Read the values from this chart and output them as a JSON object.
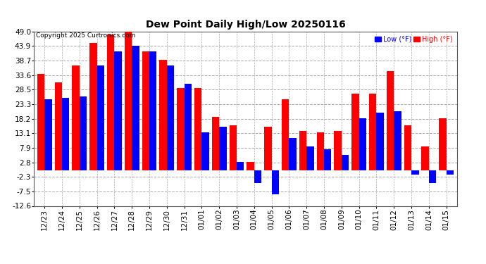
{
  "title": "Dew Point Daily High/Low 20250116",
  "copyright": "Copyright 2025 Curtronics.com",
  "legend_low": "Low (°F)",
  "legend_high": "High (°F)",
  "low_color": "#0000ff",
  "high_color": "#ff0000",
  "background_color": "#ffffff",
  "ylim": [
    -12.6,
    49.0
  ],
  "yticks": [
    -12.6,
    -7.5,
    -2.3,
    2.8,
    7.9,
    13.1,
    18.2,
    23.3,
    28.5,
    33.6,
    38.7,
    43.9,
    49.0
  ],
  "categories": [
    "12/23",
    "12/24",
    "12/25",
    "12/26",
    "12/27",
    "12/28",
    "12/29",
    "12/30",
    "12/31",
    "01/01",
    "01/02",
    "01/03",
    "01/04",
    "01/05",
    "01/06",
    "01/07",
    "01/08",
    "01/09",
    "01/10",
    "01/11",
    "01/12",
    "01/13",
    "01/14",
    "01/15"
  ],
  "high_values": [
    34.0,
    31.0,
    37.0,
    45.0,
    48.0,
    49.0,
    42.0,
    39.0,
    29.0,
    29.0,
    19.0,
    16.0,
    3.0,
    15.5,
    25.0,
    14.0,
    13.5,
    14.0,
    27.0,
    27.0,
    35.0,
    16.0,
    8.5,
    18.5
  ],
  "low_values": [
    25.0,
    25.5,
    26.0,
    37.0,
    42.0,
    44.0,
    42.0,
    37.0,
    30.5,
    13.5,
    15.5,
    3.0,
    -4.5,
    -8.5,
    11.5,
    8.5,
    7.5,
    5.5,
    18.5,
    20.5,
    21.0,
    -1.5,
    -4.5,
    -1.5
  ]
}
